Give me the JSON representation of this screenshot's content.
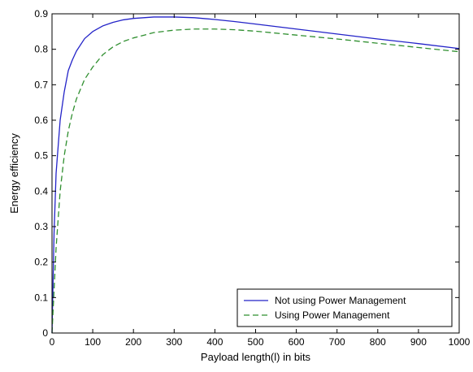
{
  "chart_data": {
    "type": "line",
    "title": "",
    "xlabel": "Payload length(l) in bits",
    "ylabel": "Energy efficiency",
    "xlim": [
      0,
      1000
    ],
    "ylim": [
      0,
      0.9
    ],
    "x_ticks": [
      0,
      100,
      200,
      300,
      400,
      500,
      600,
      700,
      800,
      900,
      1000
    ],
    "y_ticks": [
      0,
      0.1,
      0.2,
      0.3,
      0.4,
      0.5,
      0.6,
      0.7,
      0.8,
      0.9
    ],
    "x_tick_labels": [
      "0",
      "100",
      "200",
      "300",
      "400",
      "500",
      "600",
      "700",
      "800",
      "900",
      "1000"
    ],
    "y_tick_labels": [
      "0",
      "0.1",
      "0.2",
      "0.3",
      "0.4",
      "0.5",
      "0.6",
      "0.7",
      "0.8",
      "0.9"
    ],
    "grid": false,
    "legend_position": "bottom-right",
    "series": [
      {
        "name": "Not using Power Management",
        "color": "#2323c8",
        "style": "solid",
        "x": [
          0,
          5,
          10,
          20,
          30,
          40,
          50,
          60,
          80,
          100,
          125,
          150,
          175,
          200,
          250,
          300,
          350,
          400,
          450,
          500,
          600,
          700,
          800,
          900,
          1000
        ],
        "y": [
          0.0,
          0.28,
          0.45,
          0.6,
          0.68,
          0.74,
          0.77,
          0.795,
          0.83,
          0.85,
          0.866,
          0.876,
          0.883,
          0.887,
          0.891,
          0.891,
          0.889,
          0.884,
          0.878,
          0.871,
          0.857,
          0.843,
          0.829,
          0.816,
          0.802
        ]
      },
      {
        "name": "Using Power Management",
        "color": "#2f8f2f",
        "style": "dashed",
        "x": [
          0,
          5,
          10,
          20,
          30,
          40,
          50,
          60,
          80,
          100,
          125,
          150,
          175,
          200,
          250,
          300,
          350,
          400,
          450,
          500,
          600,
          700,
          800,
          900,
          1000
        ],
        "y": [
          0.0,
          0.12,
          0.24,
          0.4,
          0.5,
          0.57,
          0.62,
          0.66,
          0.715,
          0.75,
          0.785,
          0.807,
          0.822,
          0.832,
          0.847,
          0.854,
          0.857,
          0.857,
          0.855,
          0.851,
          0.84,
          0.829,
          0.817,
          0.805,
          0.793
        ]
      }
    ]
  }
}
